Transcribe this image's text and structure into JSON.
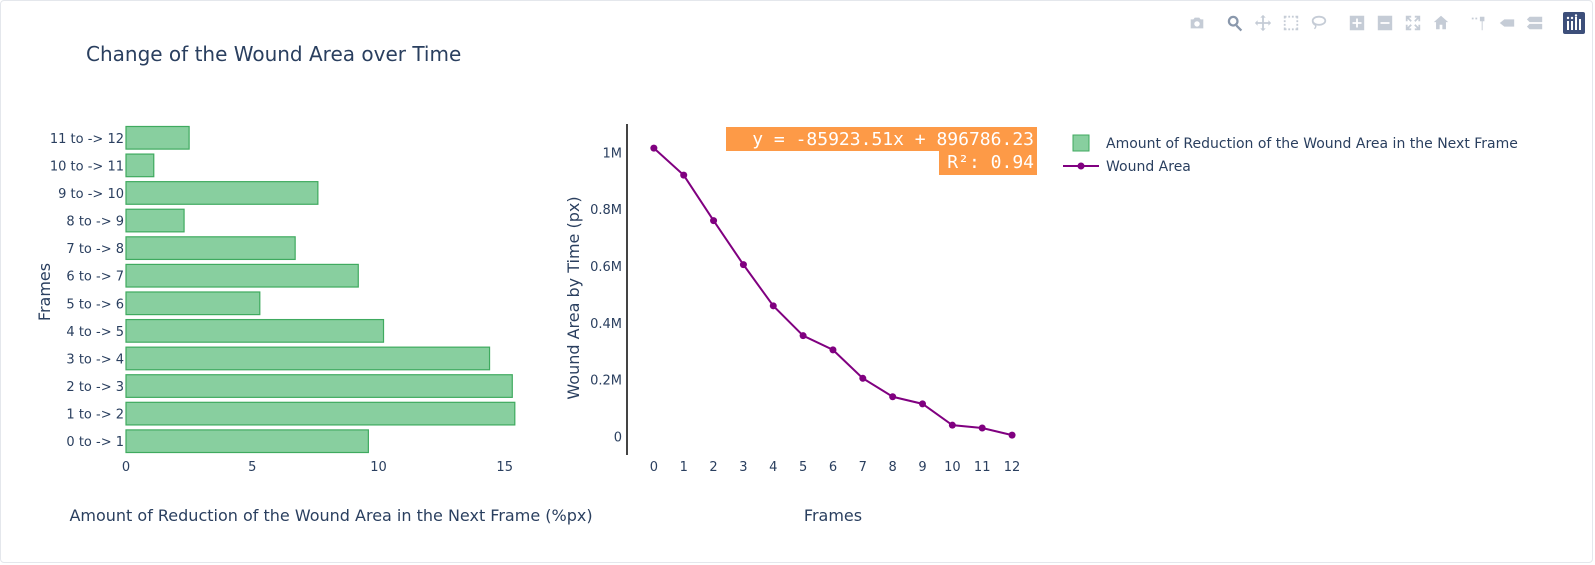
{
  "title": "Change of the Wound Area over Time",
  "modebar": {
    "icons": [
      "camera-icon",
      "zoom-icon",
      "pan-icon",
      "box-select-icon",
      "lasso-icon",
      "zoom-in-icon",
      "zoom-out-icon",
      "autoscale-icon",
      "reset-axes-icon",
      "spike-lines-icon",
      "hover-closest-icon",
      "hover-compare-icon",
      "plotly-logo"
    ]
  },
  "colors": {
    "bar_fill": "#88cf9f",
    "bar_line": "#3faa5f",
    "line": "#800080",
    "annotation_bg": "#fd9a47",
    "text": "#2a3f5f"
  },
  "chart_data": [
    {
      "type": "bar",
      "orientation": "horizontal",
      "categories": [
        "0 to -> 1",
        "1 to -> 2",
        "2 to -> 3",
        "3 to -> 4",
        "4 to -> 5",
        "5 to -> 6",
        "6 to -> 7",
        "7 to -> 8",
        "8 to -> 9",
        "9 to -> 10",
        "10 to -> 11",
        "11 to -> 12"
      ],
      "values": [
        9.6,
        15.4,
        15.3,
        14.4,
        10.2,
        5.3,
        9.2,
        6.7,
        2.3,
        7.6,
        1.1,
        2.5
      ],
      "series": [
        {
          "name": "Amount of Reduction of the Wound Area in the Next Frame"
        }
      ],
      "xlabel": "Amount of Reduction of the Wound Area in the Next Frame (%px)",
      "ylabel": "Frames",
      "xlim": [
        0,
        16.2
      ],
      "xticks": [
        0,
        5,
        10,
        15
      ],
      "xtick_labels": [
        "0",
        "5",
        "10",
        "15"
      ]
    },
    {
      "type": "line",
      "x": [
        0,
        1,
        2,
        3,
        4,
        5,
        6,
        7,
        8,
        9,
        10,
        11,
        12
      ],
      "y": [
        1015000,
        920000,
        760000,
        605000,
        460000,
        355000,
        305000,
        205000,
        140000,
        115000,
        40000,
        30000,
        5000
      ],
      "series": [
        {
          "name": "Wound Area"
        }
      ],
      "xlabel": "Frames",
      "ylabel": "Wound Area by Time (px)",
      "xlim": [
        -0.9,
        12.4
      ],
      "ylim": [
        -65000,
        1100000
      ],
      "xticks": [
        0,
        1,
        2,
        3,
        4,
        5,
        6,
        7,
        8,
        9,
        10,
        11,
        12
      ],
      "xtick_labels": [
        "0",
        "1",
        "2",
        "3",
        "4",
        "5",
        "6",
        "7",
        "8",
        "9",
        "10",
        "11",
        "12"
      ],
      "yticks": [
        0,
        200000,
        400000,
        600000,
        800000,
        1000000
      ],
      "ytick_labels": [
        "0",
        "0.2M",
        "0.4M",
        "0.6M",
        "0.8M",
        "1M"
      ],
      "annotations": [
        "y = -85923.51x + 896786.23",
        "R²: 0.94"
      ]
    }
  ]
}
